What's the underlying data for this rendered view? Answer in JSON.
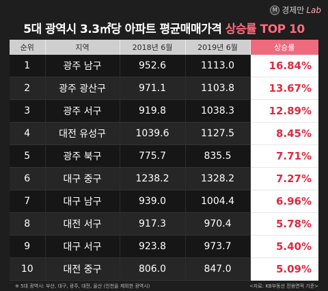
{
  "logo": {
    "mark": "M",
    "brand": "경제만",
    "lab": "Lab"
  },
  "title": {
    "main": "5대 광역시 3.3㎡당 아파트 평균매매가격 ",
    "highlight": "상승률 TOP 10"
  },
  "table": {
    "headers": [
      "순위",
      "지역",
      "2018년 6월",
      "2019년 6월",
      "상승률"
    ],
    "rows": [
      {
        "rank": "1",
        "region": "광주 남구",
        "y2018": "952.6",
        "y2019": "1113.0",
        "rate": "16.84%"
      },
      {
        "rank": "2",
        "region": "광주 광산구",
        "y2018": "971.1",
        "y2019": "1103.8",
        "rate": "13.67%"
      },
      {
        "rank": "3",
        "region": "광주 서구",
        "y2018": "919.8",
        "y2019": "1038.3",
        "rate": "12.89%"
      },
      {
        "rank": "4",
        "region": "대전 유성구",
        "y2018": "1039.6",
        "y2019": "1127.5",
        "rate": "8.45%"
      },
      {
        "rank": "5",
        "region": "광주 북구",
        "y2018": "775.7",
        "y2019": "835.5",
        "rate": "7.71%"
      },
      {
        "rank": "6",
        "region": "대구 중구",
        "y2018": "1238.2",
        "y2019": "1328.2",
        "rate": "7.27%"
      },
      {
        "rank": "7",
        "region": "대구 남구",
        "y2018": "939.0",
        "y2019": "1004.4",
        "rate": "6.96%"
      },
      {
        "rank": "8",
        "region": "대전 서구",
        "y2018": "917.3",
        "y2019": "970.4",
        "rate": "5.78%"
      },
      {
        "rank": "9",
        "region": "대구 서구",
        "y2018": "923.8",
        "y2019": "973.7",
        "rate": "5.40%"
      },
      {
        "rank": "10",
        "region": "대전 중구",
        "y2018": "806.0",
        "y2019": "847.0",
        "rate": "5.09%"
      }
    ]
  },
  "footnote": {
    "left": "※ 5대 광역시: 부산, 대구, 광주, 대전, 울산 (인천을 제외한 광역시)",
    "right": "<자료: KB부동산 전용면적 기준>"
  }
}
